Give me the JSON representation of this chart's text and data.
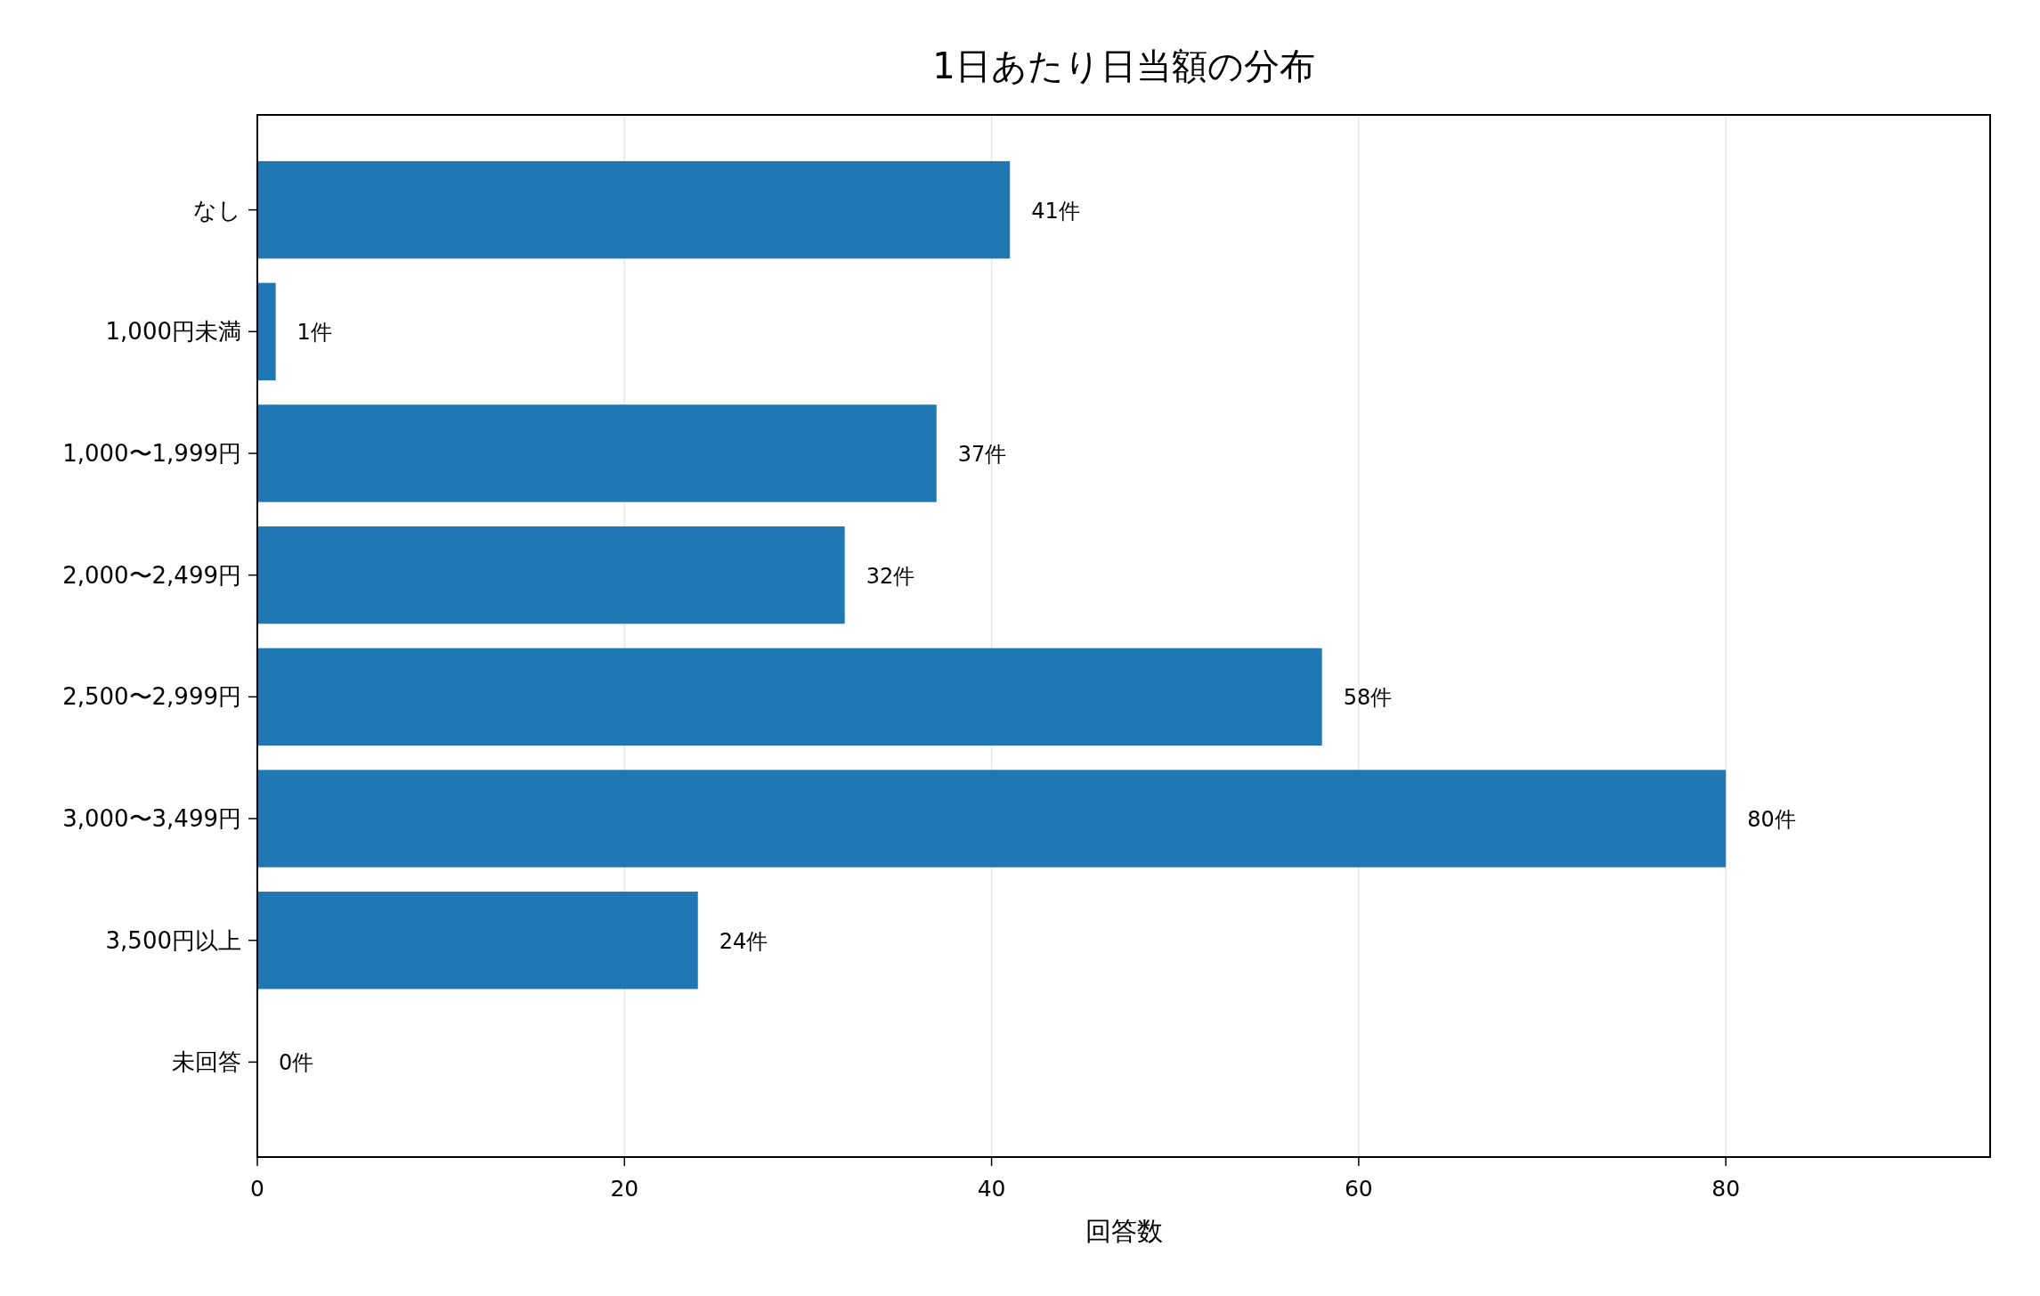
{
  "chart_data": {
    "type": "bar",
    "orientation": "horizontal",
    "title": "1日あたり日当額の分布",
    "xlabel": "回答数",
    "categories": [
      "なし",
      "1,000円未満",
      "1,000〜1,999円",
      "2,000〜2,499円",
      "2,500〜2,999円",
      "3,000〜3,499円",
      "3,500円以上",
      "未回答"
    ],
    "values": [
      41,
      1,
      37,
      32,
      58,
      80,
      24,
      0
    ],
    "value_labels": [
      "41件",
      "1件",
      "37件",
      "32件",
      "58件",
      "80件",
      "24件",
      "0件"
    ],
    "color": "#1f77b4",
    "xlim": [
      0,
      94.4
    ],
    "xticks": [
      0,
      20,
      40,
      60,
      80
    ],
    "grid": "x"
  }
}
